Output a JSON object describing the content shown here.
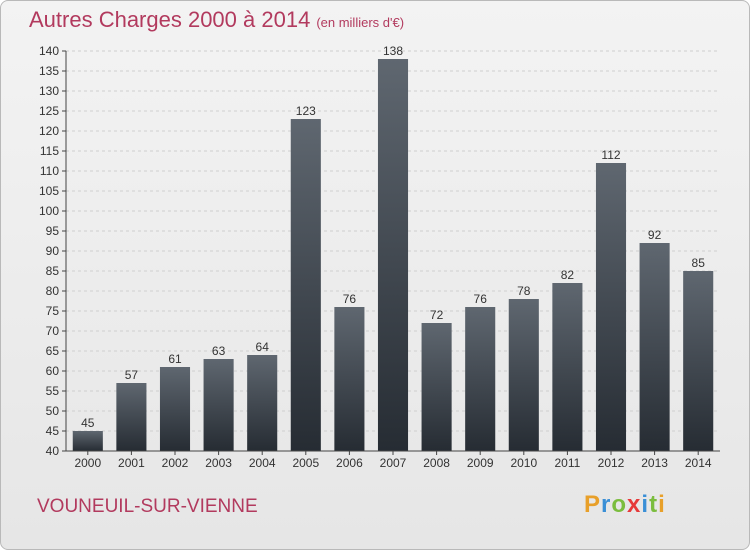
{
  "header": {
    "title": "Autres Charges 2000 à 2014",
    "unit": "(en milliers d'€)"
  },
  "footer": {
    "location": "VOUNEUIL-SUR-VIENNE",
    "logo_text": "Proxiti"
  },
  "colors": {
    "title": "#b23a5e",
    "bar_top": "#5f6770",
    "bar_bottom": "#262c33",
    "logo_letters": [
      "#e8a02a",
      "#3a8fd6",
      "#7bbd3e",
      "#e63a3a",
      "#3a8fd6",
      "#7bbd3e",
      "#e8a02a"
    ]
  },
  "chart_data": {
    "type": "bar",
    "title": "Autres Charges 2000 à 2014",
    "categories": [
      "2000",
      "2001",
      "2002",
      "2003",
      "2004",
      "2005",
      "2006",
      "2007",
      "2008",
      "2009",
      "2010",
      "2011",
      "2012",
      "2013",
      "2014"
    ],
    "values": [
      45,
      57,
      61,
      63,
      64,
      123,
      76,
      138,
      72,
      76,
      78,
      82,
      112,
      92,
      85
    ],
    "ylim": [
      40,
      140
    ],
    "yticks": [
      40,
      45,
      50,
      55,
      60,
      65,
      70,
      75,
      80,
      85,
      90,
      95,
      100,
      105,
      110,
      115,
      120,
      125,
      130,
      135,
      140
    ],
    "grid": true,
    "data_labels": true
  }
}
